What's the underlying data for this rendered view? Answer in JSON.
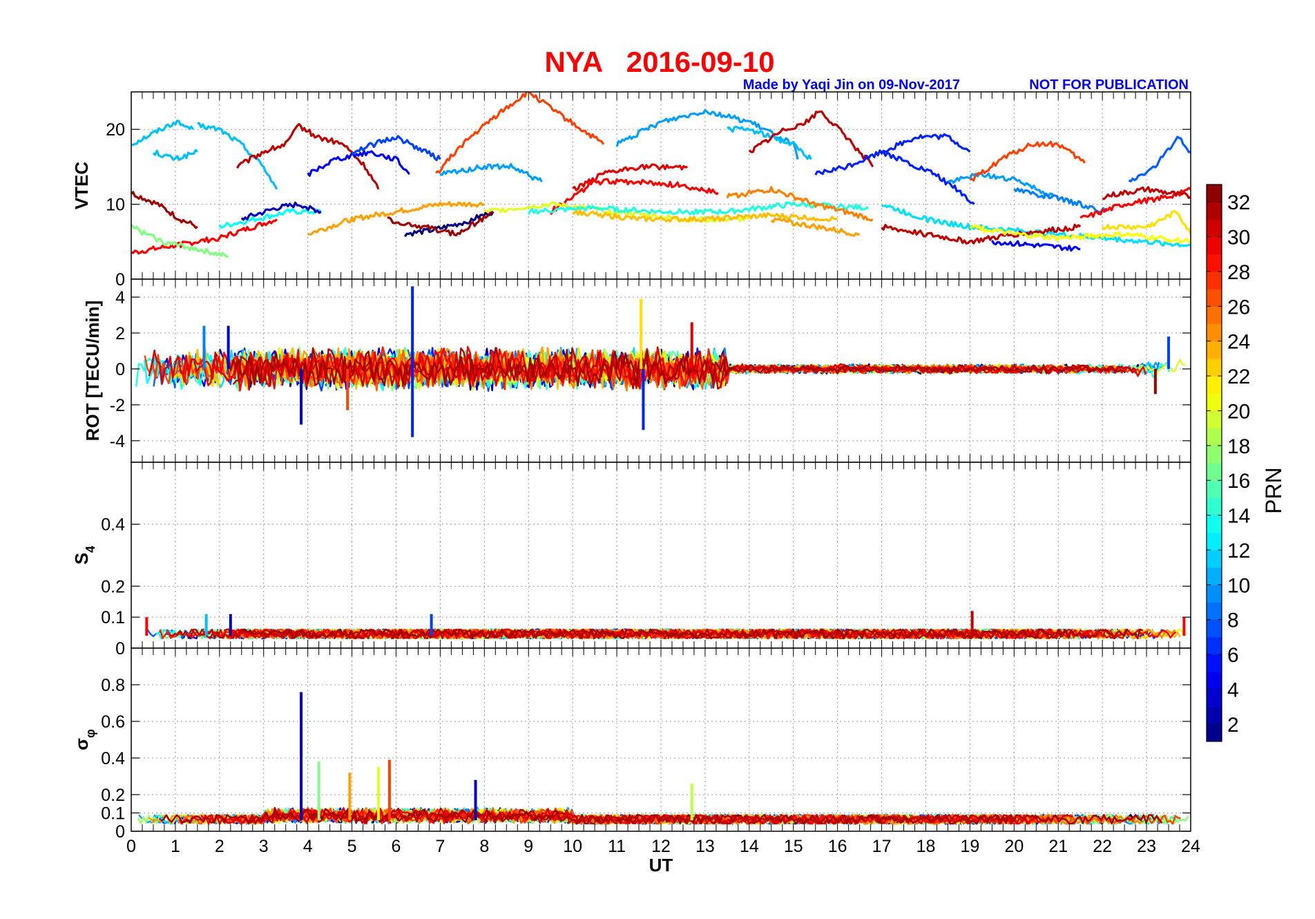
{
  "header": {
    "title": "NYA   2016-09-10",
    "credit": "Made by Yaqi Jin on 09-Nov-2017",
    "notice": "NOT FOR PUBLICATION",
    "title_color": "#ff0000",
    "credit_color": "#0000ff"
  },
  "chart_data": [
    {
      "type": "line",
      "panel": "vtec",
      "ylabel": "VTEC",
      "ylim": [
        0,
        25
      ],
      "yticks": [
        0,
        10,
        20
      ],
      "xlim": [
        0,
        24
      ],
      "grid": true,
      "series": [
        {
          "prn": 11,
          "x": [
            0,
            0.5,
            1,
            1.4
          ],
          "y": [
            18,
            19.5,
            21,
            20
          ]
        },
        {
          "prn": 11,
          "x": [
            0.5,
            1,
            1.5
          ],
          "y": [
            17,
            16,
            17
          ]
        },
        {
          "prn": 11,
          "x": [
            1.5,
            2,
            2.5,
            3,
            3.3
          ],
          "y": [
            20.5,
            20,
            18,
            15,
            12
          ]
        },
        {
          "prn": 31,
          "x": [
            2.4,
            3,
            3.5,
            3.8,
            4.2,
            4.8,
            5.3,
            5.6
          ],
          "y": [
            15,
            17,
            18,
            20.5,
            19,
            18,
            15,
            12
          ]
        },
        {
          "prn": 5,
          "x": [
            4,
            4.6,
            5.4,
            6,
            6.3
          ],
          "y": [
            14,
            16,
            17,
            16,
            14
          ]
        },
        {
          "prn": 7,
          "x": [
            5,
            5.5,
            6,
            6.5,
            7
          ],
          "y": [
            17,
            18,
            19,
            17.5,
            16
          ]
        },
        {
          "prn": 27,
          "x": [
            6.9,
            7.5,
            8.3,
            9,
            9.7,
            10.7
          ],
          "y": [
            14,
            18,
            22,
            25,
            22,
            18
          ]
        },
        {
          "prn": 10,
          "x": [
            7,
            8,
            8.6,
            9.3
          ],
          "y": [
            14,
            15,
            15,
            13
          ]
        },
        {
          "prn": 10,
          "x": [
            11,
            12,
            13,
            14,
            15,
            15.1
          ],
          "y": [
            18,
            21,
            22.5,
            21,
            18,
            16
          ]
        },
        {
          "prn": 11,
          "x": [
            13.5,
            14,
            14.5,
            15,
            15.4
          ],
          "y": [
            20,
            20,
            19,
            18,
            16
          ]
        },
        {
          "prn": 31,
          "x": [
            14,
            14.8,
            15.3,
            15.6,
            16.2,
            16.8
          ],
          "y": [
            17,
            20,
            21,
            22.5,
            19,
            15
          ]
        },
        {
          "prn": 6,
          "x": [
            15.5,
            16.2,
            17,
            17.8,
            18.5,
            19
          ],
          "y": [
            14,
            15,
            17,
            19,
            19,
            17
          ]
        },
        {
          "prn": 6,
          "x": [
            17,
            17.6,
            18.2,
            18.7,
            19.1
          ],
          "y": [
            17,
            15.5,
            14,
            12,
            10
          ]
        },
        {
          "prn": 10,
          "x": [
            18.5,
            19.3,
            20.2,
            20.9
          ],
          "y": [
            13,
            14,
            13,
            11
          ]
        },
        {
          "prn": 9,
          "x": [
            20,
            20.8,
            21.5,
            22.1
          ],
          "y": [
            12,
            11,
            10,
            9
          ]
        },
        {
          "prn": 27,
          "x": [
            19,
            19.7,
            20.4,
            21,
            21.6
          ],
          "y": [
            13,
            16,
            18,
            18,
            15.5
          ]
        },
        {
          "prn": 8,
          "x": [
            22.6,
            23.2,
            23.7,
            24
          ],
          "y": [
            13,
            15,
            19,
            17
          ]
        },
        {
          "prn": 30,
          "x": [
            10,
            10.7,
            11.5,
            12.6
          ],
          "y": [
            12,
            14,
            15,
            15
          ]
        },
        {
          "prn": 29,
          "x": [
            9.5,
            10.5,
            11.5,
            12.5,
            13.3
          ],
          "y": [
            9,
            13,
            13,
            12.5,
            11.5
          ]
        },
        {
          "prn": 29,
          "x": [
            0,
            1,
            2,
            3.3
          ],
          "y": [
            3.5,
            4.5,
            5.5,
            8
          ]
        },
        {
          "prn": 32,
          "x": [
            0,
            0.6,
            1.1,
            1.5
          ],
          "y": [
            11.5,
            10,
            8,
            7
          ]
        },
        {
          "prn": 17,
          "x": [
            0,
            0.7,
            1.5,
            2.2
          ],
          "y": [
            7,
            5,
            4,
            3
          ]
        },
        {
          "prn": 13,
          "x": [
            2,
            2.8,
            3.6,
            4.3
          ],
          "y": [
            7,
            8,
            9,
            9
          ]
        },
        {
          "prn": 3,
          "x": [
            2.5,
            3.3,
            3.8,
            4.3
          ],
          "y": [
            8,
            9.5,
            10,
            9
          ]
        },
        {
          "prn": 24,
          "x": [
            4,
            5,
            6,
            7,
            8
          ],
          "y": [
            6,
            8,
            9,
            10,
            10
          ]
        },
        {
          "prn": 1,
          "x": [
            6.2,
            6.8,
            7.5,
            8.2
          ],
          "y": [
            6,
            6.5,
            7.5,
            9
          ]
        },
        {
          "prn": 32,
          "x": [
            5.8,
            6.6,
            7.4,
            8.2
          ],
          "y": [
            8,
            7,
            6,
            9
          ]
        },
        {
          "prn": 20,
          "x": [
            8,
            9.5,
            11,
            12.5,
            14
          ],
          "y": [
            9,
            10,
            9,
            8,
            8
          ]
        },
        {
          "prn": 14,
          "x": [
            9,
            10.5,
            12,
            13.5,
            15,
            16.7
          ],
          "y": [
            9,
            9.5,
            9,
            9,
            10,
            9.5
          ]
        },
        {
          "prn": 23,
          "x": [
            10,
            11.5,
            13,
            14.5,
            16
          ],
          "y": [
            9,
            8,
            8,
            8.5,
            8
          ]
        },
        {
          "prn": 25,
          "x": [
            13.5,
            14.5,
            15.5,
            16.8
          ],
          "y": [
            11,
            12,
            10,
            8
          ]
        },
        {
          "prn": 24,
          "x": [
            14.5,
            15.5,
            16.5
          ],
          "y": [
            8,
            7,
            6
          ]
        },
        {
          "prn": 12,
          "x": [
            17,
            18,
            19,
            20,
            21,
            22,
            23,
            24
          ],
          "y": [
            10,
            8,
            7,
            6.5,
            6,
            5.5,
            5,
            4.5
          ]
        },
        {
          "prn": 31,
          "x": [
            17,
            18,
            19,
            20,
            21.5
          ],
          "y": [
            7,
            6,
            5,
            6,
            7
          ]
        },
        {
          "prn": 21,
          "x": [
            19,
            20,
            21,
            22.5,
            24
          ],
          "y": [
            7,
            6,
            5.5,
            6,
            5
          ]
        },
        {
          "prn": 29,
          "x": [
            21.5,
            22.5,
            23.5,
            24
          ],
          "y": [
            8,
            10,
            11,
            12
          ]
        },
        {
          "prn": 31,
          "x": [
            22,
            23,
            24
          ],
          "y": [
            11,
            12,
            11
          ]
        },
        {
          "prn": 22,
          "x": [
            22,
            23,
            23.7,
            24
          ],
          "y": [
            7,
            7,
            9,
            6
          ]
        },
        {
          "prn": 5,
          "x": [
            19.5,
            20.5,
            21.5
          ],
          "y": [
            5,
            4.5,
            4
          ]
        }
      ]
    },
    {
      "type": "line",
      "panel": "rot",
      "ylabel": "ROT [TECU/min]",
      "ylim": [
        -5.2,
        5
      ],
      "yticks": [
        -4,
        -2,
        0,
        2,
        4
      ],
      "xlim": [
        0,
        24
      ],
      "grid": true,
      "spikes": [
        {
          "prn": 6,
          "x": 6.37,
          "y": 4.6
        },
        {
          "prn": 6,
          "x": 6.37,
          "y": -3.8
        },
        {
          "prn": 3,
          "x": 3.85,
          "y": -3.1
        },
        {
          "prn": 22,
          "x": 11.55,
          "y": 3.9
        },
        {
          "prn": 6,
          "x": 11.6,
          "y": -3.4
        },
        {
          "prn": 30,
          "x": 12.7,
          "y": 2.6
        },
        {
          "prn": 9,
          "x": 1.65,
          "y": 2.4
        },
        {
          "prn": 4,
          "x": 2.2,
          "y": 2.4
        },
        {
          "prn": 7,
          "x": 23.5,
          "y": 1.8
        },
        {
          "prn": 27,
          "x": 4.9,
          "y": -2.3
        },
        {
          "prn": 32,
          "x": 23.2,
          "y": -1.4
        }
      ]
    },
    {
      "type": "line",
      "panel": "s4",
      "ylabel": "S4",
      "ylim": [
        0,
        0.6
      ],
      "yticks": [
        0,
        0.1,
        0.2,
        0.4
      ],
      "xlim": [
        0,
        24
      ],
      "grid": true,
      "spikes": [
        {
          "prn": 3,
          "x": 2.25,
          "y": 0.11
        },
        {
          "prn": 11,
          "x": 1.7,
          "y": 0.11
        },
        {
          "prn": 7,
          "x": 6.8,
          "y": 0.11
        },
        {
          "prn": 31,
          "x": 19.05,
          "y": 0.12
        },
        {
          "prn": 29,
          "x": 23.85,
          "y": 0.1
        },
        {
          "prn": 29,
          "x": 0.35,
          "y": 0.1
        }
      ]
    },
    {
      "type": "line",
      "panel": "sigma_phi",
      "ylabel": "σφ",
      "xlabel": "UT",
      "ylim": [
        0,
        1
      ],
      "yticks": [
        0,
        0.1,
        0.2,
        0.4,
        0.6,
        0.8
      ],
      "xlim": [
        0,
        24
      ],
      "xticks": [
        0,
        1,
        2,
        3,
        4,
        5,
        6,
        7,
        8,
        9,
        10,
        11,
        12,
        13,
        14,
        15,
        16,
        17,
        18,
        19,
        20,
        21,
        22,
        23,
        24
      ],
      "grid": true,
      "spikes": [
        {
          "prn": 3,
          "x": 3.85,
          "y": 0.76
        },
        {
          "prn": 17,
          "x": 4.25,
          "y": 0.38
        },
        {
          "prn": 27,
          "x": 5.85,
          "y": 0.39
        },
        {
          "prn": 20,
          "x": 5.6,
          "y": 0.35
        },
        {
          "prn": 24,
          "x": 4.95,
          "y": 0.32
        },
        {
          "prn": 3,
          "x": 7.8,
          "y": 0.28
        },
        {
          "prn": 19,
          "x": 12.7,
          "y": 0.26
        }
      ]
    }
  ],
  "colorbar": {
    "label": "PRN",
    "min": 1,
    "max": 33,
    "ticks": [
      2,
      4,
      6,
      8,
      10,
      12,
      14,
      16,
      18,
      20,
      22,
      24,
      26,
      28,
      30,
      32
    ],
    "colormap": "jet"
  }
}
